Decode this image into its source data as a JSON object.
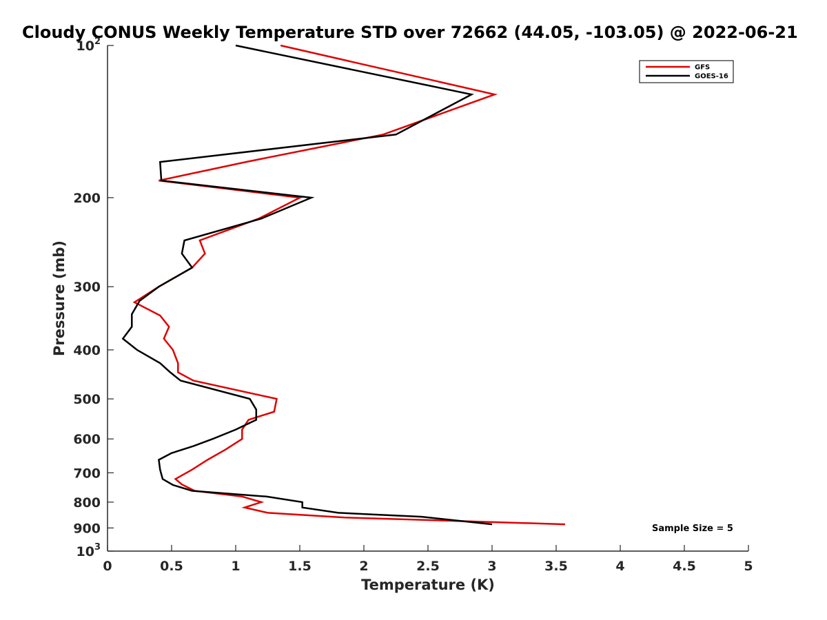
{
  "chart_data": {
    "type": "line",
    "title": "Cloudy CONUS Weekly Temperature STD over 72662 (44.05, -103.05) @ 2022-06-21",
    "xlabel": "Temperature (K)",
    "ylabel": "Pressure (mb)",
    "xlim": [
      0,
      5
    ],
    "ylim": [
      100,
      1000
    ],
    "y_scale": "log",
    "y_reversed": true,
    "x_ticks": [
      0,
      0.5,
      1,
      1.5,
      2,
      2.5,
      3,
      3.5,
      4,
      4.5,
      5
    ],
    "x_tick_labels": [
      "0",
      "0.5",
      "1",
      "1.5",
      "2",
      "2.5",
      "3",
      "3.5",
      "4",
      "4.5",
      "5"
    ],
    "y_ticks": [
      {
        "value": 100,
        "base": "10",
        "exp": "2",
        "label": ""
      },
      {
        "value": 200,
        "label": "200"
      },
      {
        "value": 300,
        "label": "300"
      },
      {
        "value": 400,
        "label": "400"
      },
      {
        "value": 500,
        "label": "500"
      },
      {
        "value": 600,
        "label": "600"
      },
      {
        "value": 700,
        "label": "700"
      },
      {
        "value": 800,
        "label": "800"
      },
      {
        "value": 900,
        "label": "900"
      },
      {
        "value": 1000,
        "base": "10",
        "exp": "3",
        "label": ""
      }
    ],
    "grid": false,
    "legend_position": "top-right",
    "annotation": "Sample Size = 5",
    "series": [
      {
        "name": "GFS",
        "color": "#e00000",
        "points": [
          [
            1.35,
            100
          ],
          [
            3.02,
            125
          ],
          [
            2.15,
            150
          ],
          [
            1.08,
            170
          ],
          [
            0.4,
            185
          ],
          [
            1.5,
            200
          ],
          [
            1.18,
            220
          ],
          [
            0.72,
            243
          ],
          [
            0.76,
            258
          ],
          [
            0.66,
            275
          ],
          [
            0.4,
            300
          ],
          [
            0.21,
            322
          ],
          [
            0.41,
            342
          ],
          [
            0.48,
            360
          ],
          [
            0.44,
            380
          ],
          [
            0.51,
            400
          ],
          [
            0.55,
            425
          ],
          [
            0.55,
            443
          ],
          [
            0.67,
            460
          ],
          [
            1.32,
            500
          ],
          [
            1.3,
            530
          ],
          [
            1.1,
            550
          ],
          [
            1.05,
            575
          ],
          [
            1.05,
            600
          ],
          [
            0.92,
            630
          ],
          [
            0.78,
            660
          ],
          [
            0.66,
            690
          ],
          [
            0.53,
            720
          ],
          [
            0.58,
            738
          ],
          [
            0.68,
            760
          ],
          [
            1.05,
            780
          ],
          [
            1.2,
            800
          ],
          [
            1.07,
            820
          ],
          [
            1.25,
            840
          ],
          [
            1.85,
            858
          ],
          [
            3.57,
            885
          ]
        ]
      },
      {
        "name": "GOES-16",
        "color": "#000000",
        "points": [
          [
            1.0,
            100
          ],
          [
            2.84,
            125
          ],
          [
            2.25,
            150
          ],
          [
            0.41,
            170
          ],
          [
            0.42,
            185
          ],
          [
            1.59,
            200
          ],
          [
            1.2,
            220
          ],
          [
            0.6,
            243
          ],
          [
            0.58,
            258
          ],
          [
            0.66,
            275
          ],
          [
            0.4,
            300
          ],
          [
            0.25,
            320
          ],
          [
            0.19,
            340
          ],
          [
            0.19,
            360
          ],
          [
            0.12,
            380
          ],
          [
            0.23,
            400
          ],
          [
            0.41,
            425
          ],
          [
            0.49,
            443
          ],
          [
            0.57,
            460
          ],
          [
            1.11,
            500
          ],
          [
            1.16,
            525
          ],
          [
            1.16,
            550
          ],
          [
            1.0,
            575
          ],
          [
            0.82,
            600
          ],
          [
            0.67,
            620
          ],
          [
            0.5,
            640
          ],
          [
            0.4,
            660
          ],
          [
            0.41,
            690
          ],
          [
            0.43,
            720
          ],
          [
            0.51,
            740
          ],
          [
            0.66,
            760
          ],
          [
            1.24,
            780
          ],
          [
            1.52,
            800
          ],
          [
            1.52,
            820
          ],
          [
            1.8,
            840
          ],
          [
            2.45,
            855
          ],
          [
            3.0,
            885
          ]
        ]
      }
    ]
  }
}
